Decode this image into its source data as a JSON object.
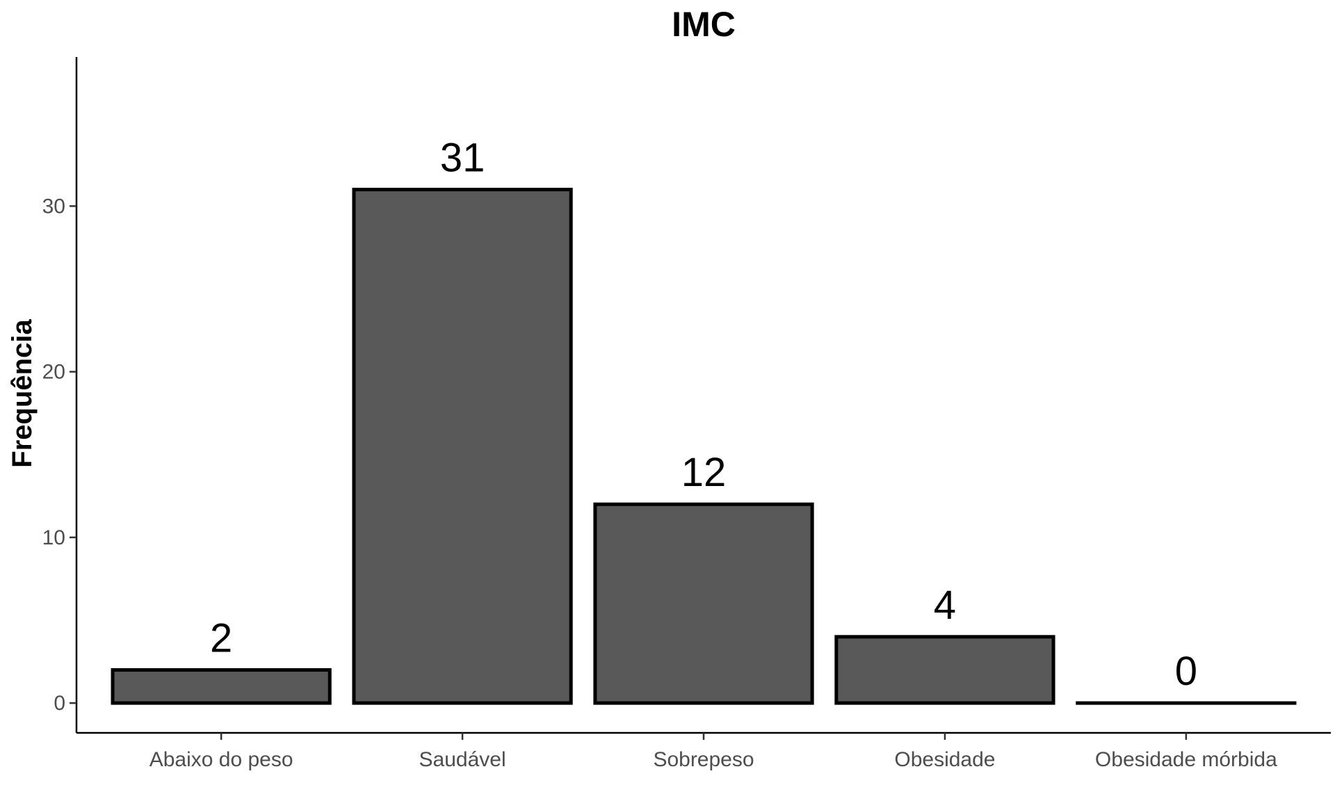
{
  "chart_data": {
    "type": "bar",
    "title": "IMC",
    "xlabel": "",
    "ylabel": "Frequência",
    "categories": [
      "Abaixo do peso",
      "Saudável",
      "Sobrepeso",
      "Obesidade",
      "Obesidade mórbida"
    ],
    "values": [
      2,
      31,
      12,
      4,
      0
    ],
    "yticks": [
      0,
      10,
      20,
      30
    ],
    "ylim": [
      -1.8,
      39
    ],
    "bar_fill": "#595959",
    "bar_stroke": "#000000",
    "grid": false,
    "legend": "none"
  }
}
